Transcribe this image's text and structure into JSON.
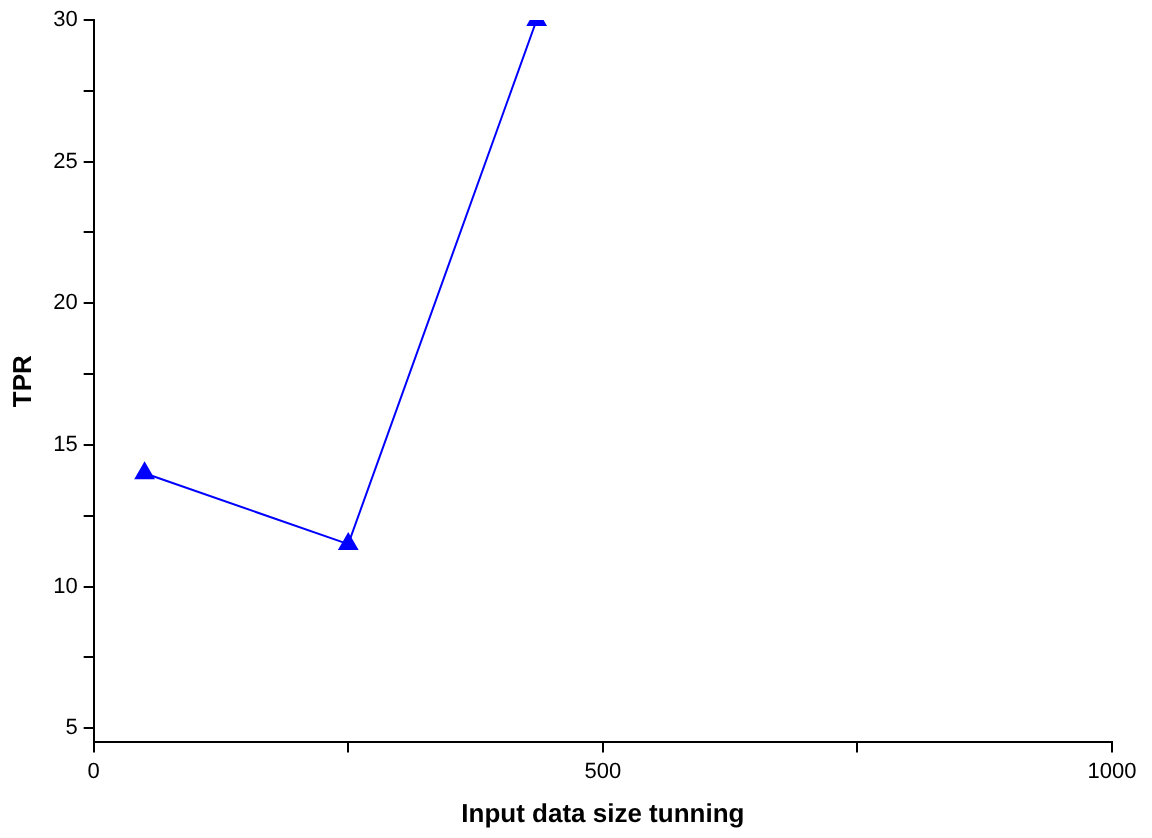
{
  "chart_data": {
    "type": "line",
    "xlabel": "Input data size tunning",
    "ylabel": "TPR",
    "x": [
      50,
      250,
      435
    ],
    "series": [
      {
        "color": "#0000ff",
        "values": [
          14,
          11.5,
          30
        ]
      }
    ],
    "xlim": [
      0,
      1000
    ],
    "xticks": [
      0,
      {
        "value": 250,
        "label": null
      },
      500,
      {
        "value": 750,
        "label": null
      },
      1000
    ],
    "ylim": [
      4.5,
      30
    ],
    "yticks": [
      5,
      {
        "value": 7.5,
        "label": null
      },
      10,
      {
        "value": 12.5,
        "label": null
      },
      15,
      {
        "value": 17.5,
        "label": null
      },
      20,
      {
        "value": 22.5,
        "label": null
      },
      25,
      {
        "value": 27.5,
        "label": null
      },
      30
    ],
    "grid": false,
    "legend": false,
    "marker": "triangle",
    "line_style": "solid"
  }
}
